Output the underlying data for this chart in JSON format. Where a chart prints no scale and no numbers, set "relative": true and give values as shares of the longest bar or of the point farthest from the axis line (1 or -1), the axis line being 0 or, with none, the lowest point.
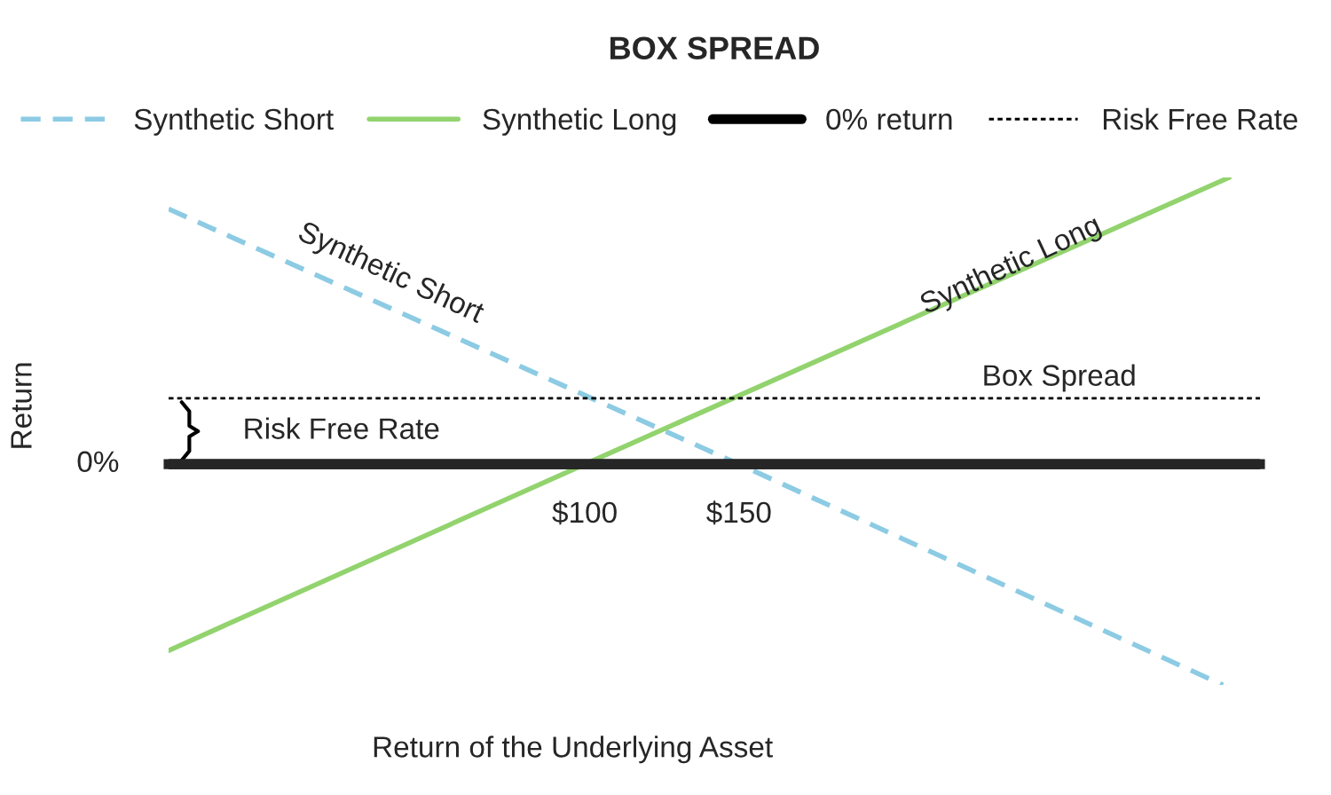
{
  "chart_data": {
    "type": "line",
    "title": "BOX SPREAD",
    "xlabel": "Return of the Underlying Asset",
    "ylabel": "Return",
    "relative": true,
    "xlim": [
      -35,
      319
    ],
    "xticks": [
      {
        "value": 100,
        "label": "$100"
      },
      {
        "value": 150,
        "label": "$150"
      }
    ],
    "series": [
      {
        "name": "Synthetic Short",
        "color": "#8ccbe3",
        "line_style": "dashed",
        "x": [
          -35,
          150,
          307
        ],
        "values": [
          0.89,
          0,
          -0.77
        ]
      },
      {
        "name": "Synthetic Long",
        "color": "#92d36e",
        "line_style": "solid",
        "x": [
          -35,
          100,
          309
        ],
        "values": [
          -0.65,
          0,
          1.0
        ]
      },
      {
        "name": "0% return",
        "color": "#000000",
        "line_style": "solid",
        "x": [
          -35,
          319
        ],
        "values": [
          0,
          0
        ]
      },
      {
        "name": "Risk Free Rate",
        "color": "#000000",
        "line_style": "dotted",
        "x": [
          -35,
          319
        ],
        "values": [
          0.23,
          0.23
        ]
      }
    ],
    "annotations": [
      "Synthetic Short",
      "Synthetic Long",
      "Box Spread",
      "Risk Free Rate",
      {
        "text": "0%",
        "x": -35,
        "y": 0
      }
    ],
    "legend": "top",
    "grid": false
  }
}
